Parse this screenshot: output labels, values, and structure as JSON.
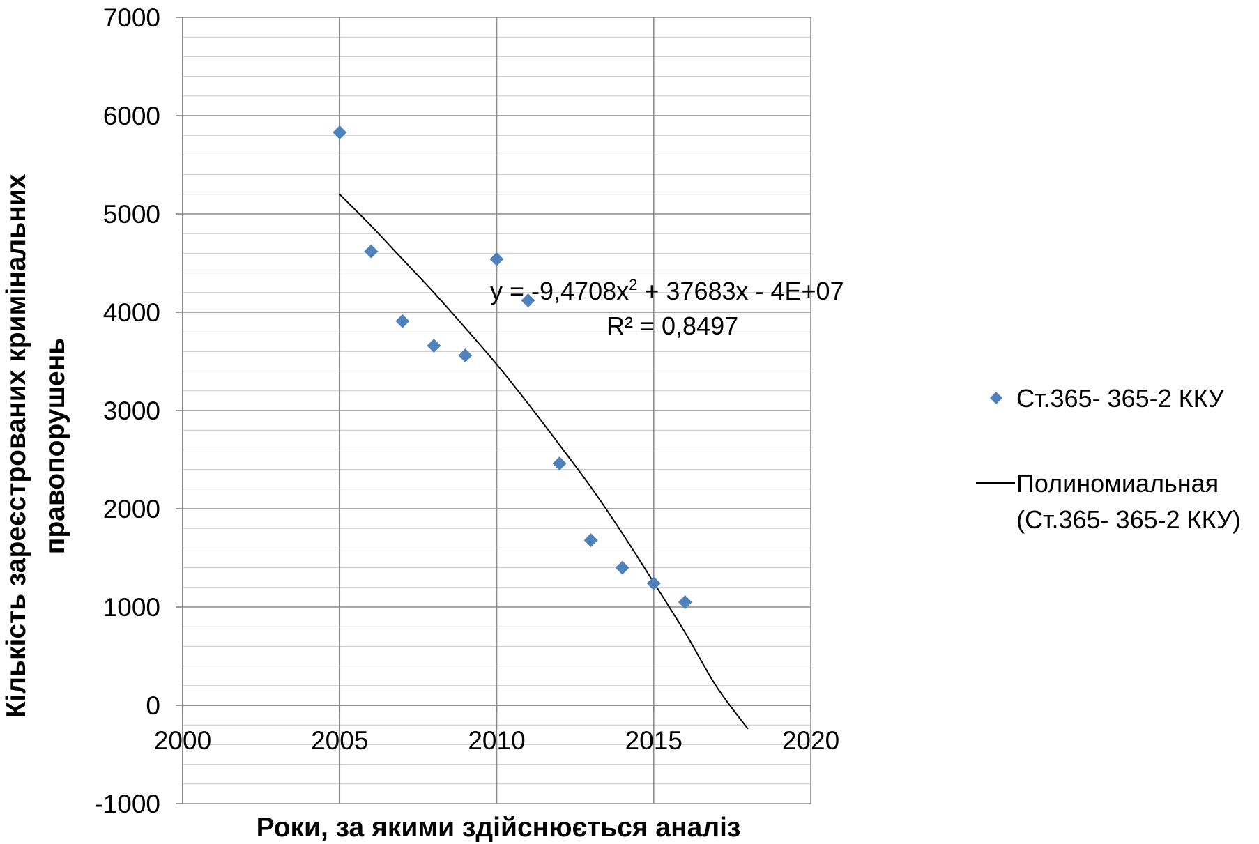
{
  "chart_data": {
    "type": "scatter",
    "xlabel": "Роки, за якими здійснюється аналіз",
    "ylabel_line1": "Кількість зареєстрованих  кримінальних",
    "ylabel_line2": "правопорушень",
    "xlim": [
      2000,
      2020
    ],
    "ylim": [
      -1000,
      7000
    ],
    "x_ticks": [
      2000,
      2005,
      2010,
      2015,
      2020
    ],
    "y_ticks": [
      -1000,
      0,
      1000,
      2000,
      3000,
      4000,
      5000,
      6000,
      7000
    ],
    "x_tick_labels": [
      "2000",
      "2005",
      "2010",
      "2015",
      "2020"
    ],
    "y_tick_labels": [
      "-1000",
      "0",
      "1000",
      "2000",
      "3000",
      "4000",
      "5000",
      "6000",
      "7000"
    ],
    "grid": true,
    "minor_y_step": 200,
    "legend_position": "right",
    "series": [
      {
        "name": "Ст.365- 365-2 ККУ",
        "marker": "diamond",
        "color": "#4F81BD",
        "x": [
          2005,
          2006,
          2007,
          2008,
          2009,
          2010,
          2011,
          2012,
          2013,
          2014,
          2015,
          2016
        ],
        "y": [
          5830,
          4620,
          3910,
          3660,
          3560,
          4540,
          4120,
          2460,
          1680,
          1400,
          1240,
          1050
        ]
      }
    ],
    "trendline": {
      "name_line1": "Полиномиальная",
      "name_line2": "(Ст.365- 365-2 ККУ)",
      "type": "polynomial",
      "color": "#000000",
      "x_range": [
        2005,
        2018
      ],
      "points": [
        [
          2005,
          5200
        ],
        [
          2006,
          4880
        ],
        [
          2007,
          4540
        ],
        [
          2008,
          4200
        ],
        [
          2009,
          3840
        ],
        [
          2010,
          3470
        ],
        [
          2011,
          3070
        ],
        [
          2012,
          2650
        ],
        [
          2013,
          2220
        ],
        [
          2014,
          1750
        ],
        [
          2015,
          1250
        ],
        [
          2016,
          740
        ],
        [
          2017,
          190
        ],
        [
          2018,
          -240
        ]
      ],
      "equation_prefix": "y = -9,4708x",
      "equation_sup": "2",
      "equation_suffix": " + 37683x - 4E+07",
      "r_squared": "R² = 0,8497"
    }
  }
}
